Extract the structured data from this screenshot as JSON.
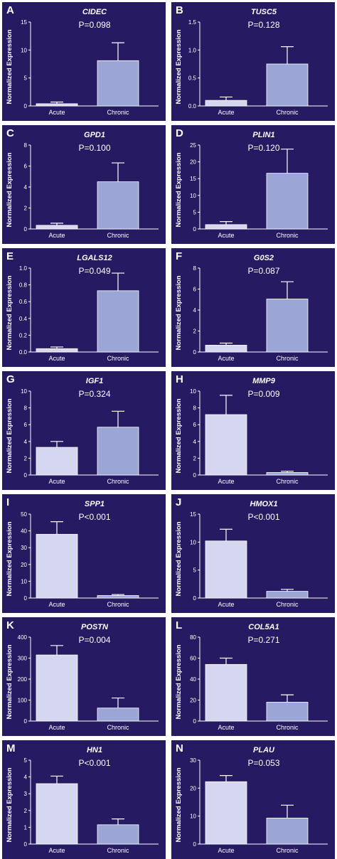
{
  "colors": {
    "panel_bg": "#261b63",
    "axis": "#ffffff",
    "acute_bar": "#d5d6f0",
    "chronic_bar": "#9ca6d6",
    "error_bar": "#ffffff"
  },
  "chart_data": [
    {
      "letter": "A",
      "title": "CIDEC",
      "pvalue": "P=0.098",
      "type": "bar",
      "ylabel": "Normalized Expression",
      "categories": [
        "Acute",
        "Chronic"
      ],
      "values": [
        0.4,
        8.1
      ],
      "errors": [
        0.3,
        3.2
      ],
      "ylim": [
        0,
        15
      ],
      "yticks": [
        0,
        5,
        10,
        15
      ]
    },
    {
      "letter": "B",
      "title": "TUSC5",
      "pvalue": "P=0.128",
      "type": "bar",
      "ylabel": "Normalized Expression",
      "categories": [
        "Acute",
        "Chronic"
      ],
      "values": [
        0.1,
        0.75
      ],
      "errors": [
        0.06,
        0.31
      ],
      "ylim": [
        0,
        1.5
      ],
      "yticks": [
        "0.0",
        "0.5",
        "1.0",
        "1.5"
      ]
    },
    {
      "letter": "C",
      "title": "GPD1",
      "pvalue": "P=0.100",
      "type": "bar",
      "ylabel": "Normalized Expression",
      "categories": [
        "Acute",
        "Chronic"
      ],
      "values": [
        0.35,
        4.5
      ],
      "errors": [
        0.2,
        1.8
      ],
      "ylim": [
        0,
        8
      ],
      "yticks": [
        0,
        2,
        4,
        6,
        8
      ]
    },
    {
      "letter": "D",
      "title": "PLIN1",
      "pvalue": "P=0.120",
      "type": "bar",
      "ylabel": "Normalized Expression",
      "categories": [
        "Acute",
        "Chronic"
      ],
      "values": [
        1.3,
        16.6
      ],
      "errors": [
        0.9,
        7.2
      ],
      "ylim": [
        0,
        25
      ],
      "yticks": [
        0,
        5,
        10,
        15,
        20,
        25
      ]
    },
    {
      "letter": "E",
      "title": "LGALS12",
      "pvalue": "P=0.049",
      "type": "bar",
      "ylabel": "Normalized Expression",
      "categories": [
        "Acute",
        "Chronic"
      ],
      "values": [
        0.04,
        0.73
      ],
      "errors": [
        0.02,
        0.21
      ],
      "ylim": [
        0,
        1.0
      ],
      "yticks": [
        "0.0",
        "0.2",
        "0.4",
        "0.6",
        "0.8",
        "1.0"
      ]
    },
    {
      "letter": "F",
      "title": "G0S2",
      "pvalue": "P=0.087",
      "type": "bar",
      "ylabel": "Normalized Expression",
      "categories": [
        "Acute",
        "Chronic"
      ],
      "values": [
        0.65,
        5.05
      ],
      "errors": [
        0.2,
        1.65
      ],
      "ylim": [
        0,
        8
      ],
      "yticks": [
        0,
        2,
        4,
        6,
        8
      ]
    },
    {
      "letter": "G",
      "title": "IGF1",
      "pvalue": "P=0.324",
      "type": "bar",
      "ylabel": "Normalized Expression",
      "categories": [
        "Acute",
        "Chronic"
      ],
      "values": [
        3.3,
        5.7
      ],
      "errors": [
        0.7,
        1.9
      ],
      "ylim": [
        0,
        10
      ],
      "yticks": [
        0,
        2,
        4,
        6,
        8,
        10
      ]
    },
    {
      "letter": "H",
      "title": "MMP9",
      "pvalue": "P=0.009",
      "type": "bar",
      "ylabel": "Normalized Expression",
      "categories": [
        "Acute",
        "Chronic"
      ],
      "values": [
        7.2,
        0.3
      ],
      "errors": [
        2.3,
        0.15
      ],
      "ylim": [
        0,
        10
      ],
      "yticks": [
        0,
        2,
        4,
        6,
        8,
        10
      ]
    },
    {
      "letter": "I",
      "title": "SPP1",
      "pvalue": "P<0.001",
      "type": "bar",
      "ylabel": "Normalized Expression",
      "categories": [
        "Acute",
        "Chronic"
      ],
      "values": [
        38,
        1.5
      ],
      "errors": [
        7.5,
        0.6
      ],
      "ylim": [
        0,
        50
      ],
      "yticks": [
        0,
        10,
        20,
        30,
        40,
        50
      ]
    },
    {
      "letter": "J",
      "title": "HMOX1",
      "pvalue": "P<0.001",
      "type": "bar",
      "ylabel": "Normalized Expression",
      "categories": [
        "Acute",
        "Chronic"
      ],
      "values": [
        10.2,
        1.2
      ],
      "errors": [
        2.1,
        0.35
      ],
      "ylim": [
        0,
        15
      ],
      "yticks": [
        0,
        5,
        10,
        15
      ]
    },
    {
      "letter": "K",
      "title": "POSTN",
      "pvalue": "P=0.004",
      "type": "bar",
      "ylabel": "Normalized Expression",
      "categories": [
        "Acute",
        "Chronic"
      ],
      "values": [
        315,
        62
      ],
      "errors": [
        45,
        48
      ],
      "ylim": [
        0,
        400
      ],
      "yticks": [
        0,
        100,
        200,
        300,
        400
      ]
    },
    {
      "letter": "L",
      "title": "COL5A1",
      "pvalue": "P=0.271",
      "type": "bar",
      "ylabel": "Normalized Expression",
      "categories": [
        "Acute",
        "Chronic"
      ],
      "values": [
        54,
        18
      ],
      "errors": [
        6,
        7
      ],
      "ylim": [
        0,
        80
      ],
      "yticks": [
        0,
        20,
        40,
        60,
        80
      ]
    },
    {
      "letter": "M",
      "title": "HN1",
      "pvalue": "P<0.001",
      "type": "bar",
      "ylabel": "Normalized Expression",
      "categories": [
        "Acute",
        "Chronic"
      ],
      "values": [
        3.6,
        1.15
      ],
      "errors": [
        0.45,
        0.35
      ],
      "ylim": [
        0,
        5
      ],
      "yticks": [
        0,
        1,
        2,
        3,
        4,
        5
      ]
    },
    {
      "letter": "N",
      "title": "PLAU",
      "pvalue": "P=0.053",
      "type": "bar",
      "ylabel": "Normalized Expression",
      "categories": [
        "Acute",
        "Chronic"
      ],
      "values": [
        22.3,
        9.3
      ],
      "errors": [
        2.2,
        4.6
      ],
      "ylim": [
        0,
        30
      ],
      "yticks": [
        0,
        10,
        20,
        30
      ]
    }
  ]
}
